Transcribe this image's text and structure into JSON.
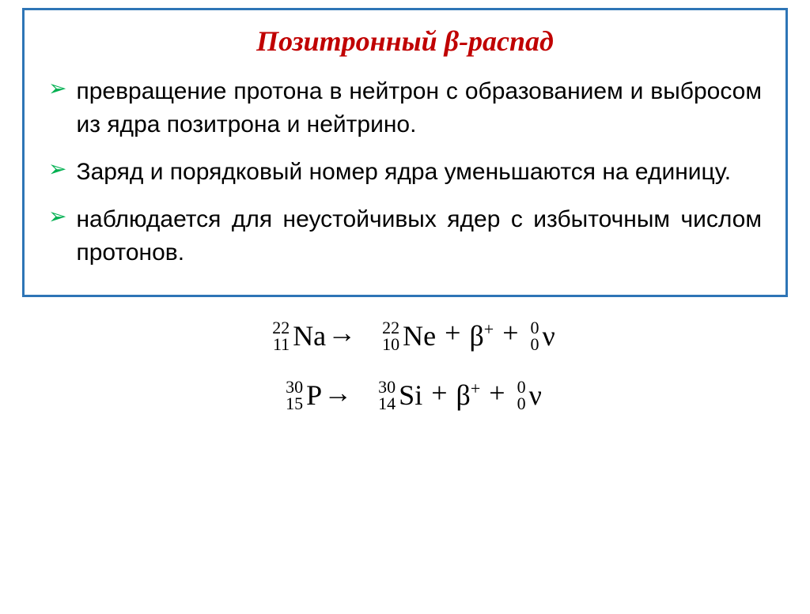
{
  "title": "Позитронный β-распад",
  "bullets": [
    "превращение протона в нейтрон с образованием и выбросом из ядра позитрона и нейтрино.",
    "Заряд и порядковый номер ядра уменьшаются на единицу.",
    "наблюдается для неустойчивых ядер с избыточным числом протонов."
  ],
  "equations": [
    {
      "reactant": {
        "mass": "22",
        "charge": "11",
        "symbol": "Na"
      },
      "products": [
        {
          "mass": "22",
          "charge": "10",
          "symbol": "Ne"
        },
        {
          "symbol_raw": "β",
          "super": "+"
        },
        {
          "mass": "0",
          "charge": "0",
          "symbol": "ν"
        }
      ]
    },
    {
      "reactant": {
        "mass": "30",
        "charge": "15",
        "symbol": "P"
      },
      "products": [
        {
          "mass": "30",
          "charge": "14",
          "symbol": "Si"
        },
        {
          "symbol_raw": "β",
          "super": "+"
        },
        {
          "mass": "0",
          "charge": "0",
          "symbol": "ν"
        }
      ]
    }
  ],
  "colors": {
    "border": "#2e75b6",
    "title": "#c00000",
    "bullet_marker": "#00b050",
    "text": "#000000"
  }
}
